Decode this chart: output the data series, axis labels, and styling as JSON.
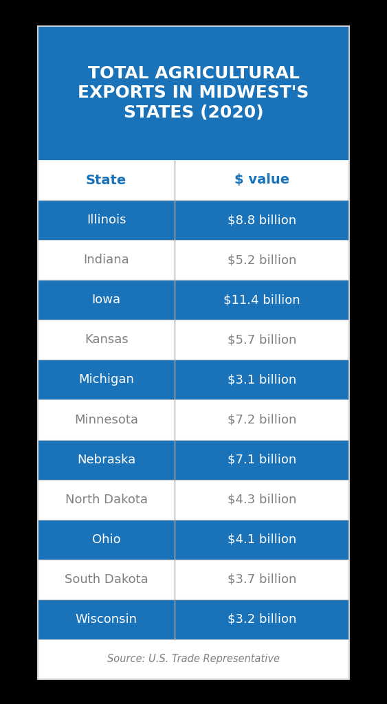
{
  "title": "TOTAL AGRICULTURAL\nEXPORTS IN MIDWEST'S\nSTATES (2020)",
  "col1_header": "State",
  "col2_header": "$ value",
  "rows": [
    [
      "Illinois",
      "$8.8 billion"
    ],
    [
      "Indiana",
      "$5.2 billion"
    ],
    [
      "Iowa",
      "$11.4 billion"
    ],
    [
      "Kansas",
      "$5.7 billion"
    ],
    [
      "Michigan",
      "$3.1 billion"
    ],
    [
      "Minnesota",
      "$7.2 billion"
    ],
    [
      "Nebraska",
      "$7.1 billion"
    ],
    [
      "North Dakota",
      "$4.3 billion"
    ],
    [
      "Ohio",
      "$4.1 billion"
    ],
    [
      "South Dakota",
      "$3.7 billion"
    ],
    [
      "Wisconsin",
      "$3.2 billion"
    ]
  ],
  "blue_rows": [
    0,
    2,
    4,
    6,
    8,
    10
  ],
  "source_text": "Source: U.S. Trade Representative",
  "title_bg_color": "#1a72b8",
  "header_bg_color": "#ffffff",
  "header_text_color": "#1a72b8",
  "blue_row_bg": "#1a72b8",
  "white_row_bg": "#ffffff",
  "blue_row_text": "#ffffff",
  "white_row_text": "#808080",
  "source_text_color": "#808080",
  "outer_bg": "#000000",
  "table_border_color": "#cccccc",
  "divider_color": "#cccccc",
  "col_divider_color": "#aaaaaa",
  "title_fontsize": 18,
  "header_fontsize": 14,
  "row_fontsize": 13,
  "source_fontsize": 10.5,
  "col_split": 0.44
}
